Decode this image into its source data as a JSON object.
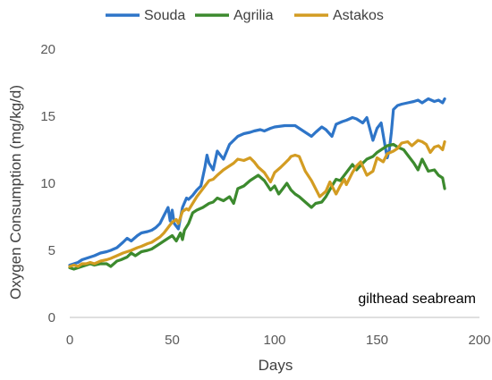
{
  "chart_data": {
    "type": "line",
    "title": "",
    "xlabel": "Days",
    "ylabel": "Oxygen Consumption (mg/kg/d)",
    "xlim": [
      0,
      200
    ],
    "ylim": [
      0,
      20
    ],
    "x_ticks": [
      "0",
      "50",
      "100",
      "150",
      "200"
    ],
    "y_ticks": [
      "0",
      "5",
      "10",
      "15",
      "20"
    ],
    "grid": false,
    "legend_position": "top",
    "annotation": "gilthead seabream",
    "series": [
      {
        "name": "Souda",
        "color": "#2E75C8",
        "x": [
          0,
          2,
          4,
          6,
          8,
          10,
          12,
          15,
          18,
          20,
          23,
          26,
          28,
          30,
          33,
          35,
          38,
          40,
          42,
          44,
          46,
          48,
          49,
          50,
          51,
          52,
          53,
          55,
          57,
          58,
          60,
          62,
          64,
          66,
          67,
          68,
          70,
          72,
          75,
          78,
          80,
          82,
          85,
          88,
          90,
          93,
          95,
          98,
          100,
          105,
          110,
          115,
          118,
          120,
          123,
          125,
          128,
          130,
          133,
          135,
          138,
          140,
          143,
          145,
          148,
          150,
          152,
          154,
          155,
          156,
          157,
          158,
          160,
          162,
          165,
          168,
          170,
          172,
          175,
          178,
          180,
          182,
          183
        ],
        "y": [
          3.9,
          4.0,
          4.1,
          4.3,
          4.4,
          4.5,
          4.6,
          4.8,
          4.9,
          5.0,
          5.2,
          5.6,
          5.9,
          5.7,
          6.1,
          6.3,
          6.4,
          6.5,
          6.7,
          7.0,
          7.6,
          8.2,
          7.2,
          8.0,
          7.0,
          6.8,
          6.6,
          8.2,
          8.9,
          8.8,
          9.1,
          9.5,
          9.8,
          11.2,
          12.1,
          11.5,
          11.0,
          12.4,
          11.8,
          12.9,
          13.2,
          13.5,
          13.7,
          13.8,
          13.9,
          14.0,
          13.9,
          14.1,
          14.2,
          14.3,
          14.3,
          13.8,
          13.5,
          13.8,
          14.2,
          14.0,
          13.5,
          14.4,
          14.6,
          14.7,
          14.9,
          14.8,
          14.5,
          14.9,
          13.2,
          14.1,
          14.5,
          12.7,
          11.9,
          12.5,
          13.8,
          15.5,
          15.8,
          15.9,
          16.0,
          16.1,
          16.2,
          16.0,
          16.3,
          16.1,
          16.2,
          16.0,
          16.3
        ]
      },
      {
        "name": "Agrilia",
        "color": "#3C8A2E",
        "x": [
          0,
          2,
          4,
          6,
          8,
          10,
          12,
          15,
          18,
          20,
          23,
          25,
          28,
          30,
          32,
          35,
          38,
          40,
          42,
          44,
          46,
          48,
          50,
          52,
          54,
          55,
          56,
          58,
          60,
          62,
          65,
          68,
          70,
          72,
          75,
          78,
          80,
          82,
          85,
          88,
          90,
          92,
          95,
          98,
          100,
          102,
          104,
          106,
          108,
          110,
          112,
          115,
          118,
          120,
          123,
          125,
          128,
          130,
          132,
          135,
          138,
          140,
          143,
          145,
          148,
          150,
          152,
          155,
          158,
          160,
          163,
          165,
          168,
          170,
          172,
          175,
          178,
          180,
          182,
          183
        ],
        "y": [
          3.7,
          3.6,
          3.7,
          3.8,
          3.9,
          4.0,
          3.9,
          4.0,
          4.0,
          3.8,
          4.2,
          4.3,
          4.5,
          4.8,
          4.6,
          4.9,
          5.0,
          5.1,
          5.3,
          5.5,
          5.7,
          5.9,
          6.1,
          5.7,
          6.3,
          5.8,
          6.5,
          7.0,
          7.8,
          8.0,
          8.2,
          8.5,
          8.6,
          8.9,
          8.7,
          9.0,
          8.5,
          9.6,
          9.8,
          10.2,
          10.4,
          10.6,
          10.2,
          9.5,
          9.8,
          9.2,
          9.6,
          10.0,
          9.5,
          9.2,
          9.0,
          8.6,
          8.2,
          8.5,
          8.6,
          9.0,
          9.8,
          10.3,
          10.2,
          10.8,
          11.4,
          11.0,
          11.5,
          11.8,
          12.0,
          12.3,
          12.5,
          12.8,
          12.9,
          12.7,
          12.5,
          12.1,
          11.5,
          11.0,
          11.8,
          10.9,
          11.0,
          10.6,
          10.4,
          9.6
        ]
      },
      {
        "name": "Astakos",
        "color": "#D39C22",
        "x": [
          0,
          2,
          4,
          6,
          8,
          10,
          12,
          15,
          18,
          20,
          23,
          26,
          28,
          30,
          33,
          35,
          38,
          40,
          42,
          44,
          46,
          48,
          50,
          52,
          53,
          55,
          57,
          58,
          60,
          62,
          64,
          66,
          68,
          70,
          72,
          75,
          78,
          80,
          82,
          85,
          88,
          90,
          92,
          95,
          98,
          100,
          103,
          105,
          107,
          108,
          110,
          112,
          115,
          118,
          120,
          122,
          125,
          127,
          130,
          132,
          134,
          135,
          138,
          140,
          142,
          145,
          148,
          150,
          153,
          155,
          158,
          160,
          162,
          165,
          167,
          170,
          172,
          174,
          176,
          178,
          180,
          182,
          183
        ],
        "y": [
          3.8,
          3.9,
          3.8,
          4.0,
          4.0,
          4.1,
          4.0,
          4.2,
          4.3,
          4.4,
          4.6,
          4.8,
          4.9,
          5.0,
          5.2,
          5.3,
          5.5,
          5.6,
          5.8,
          6.0,
          6.3,
          6.7,
          7.1,
          7.3,
          7.0,
          7.9,
          8.1,
          8.0,
          8.5,
          9.0,
          9.4,
          9.8,
          10.2,
          10.3,
          10.6,
          11.0,
          11.3,
          11.5,
          11.8,
          11.7,
          11.9,
          11.6,
          11.2,
          10.8,
          10.1,
          10.8,
          11.2,
          11.5,
          11.8,
          12.0,
          12.1,
          12.0,
          10.9,
          10.2,
          9.6,
          9.0,
          9.4,
          10.1,
          9.2,
          9.8,
          10.3,
          9.9,
          10.8,
          11.3,
          11.6,
          10.6,
          10.9,
          11.9,
          11.6,
          12.2,
          12.4,
          12.6,
          13.0,
          13.1,
          12.8,
          13.2,
          13.1,
          12.9,
          12.3,
          12.7,
          12.8,
          12.5,
          13.1
        ]
      }
    ]
  }
}
